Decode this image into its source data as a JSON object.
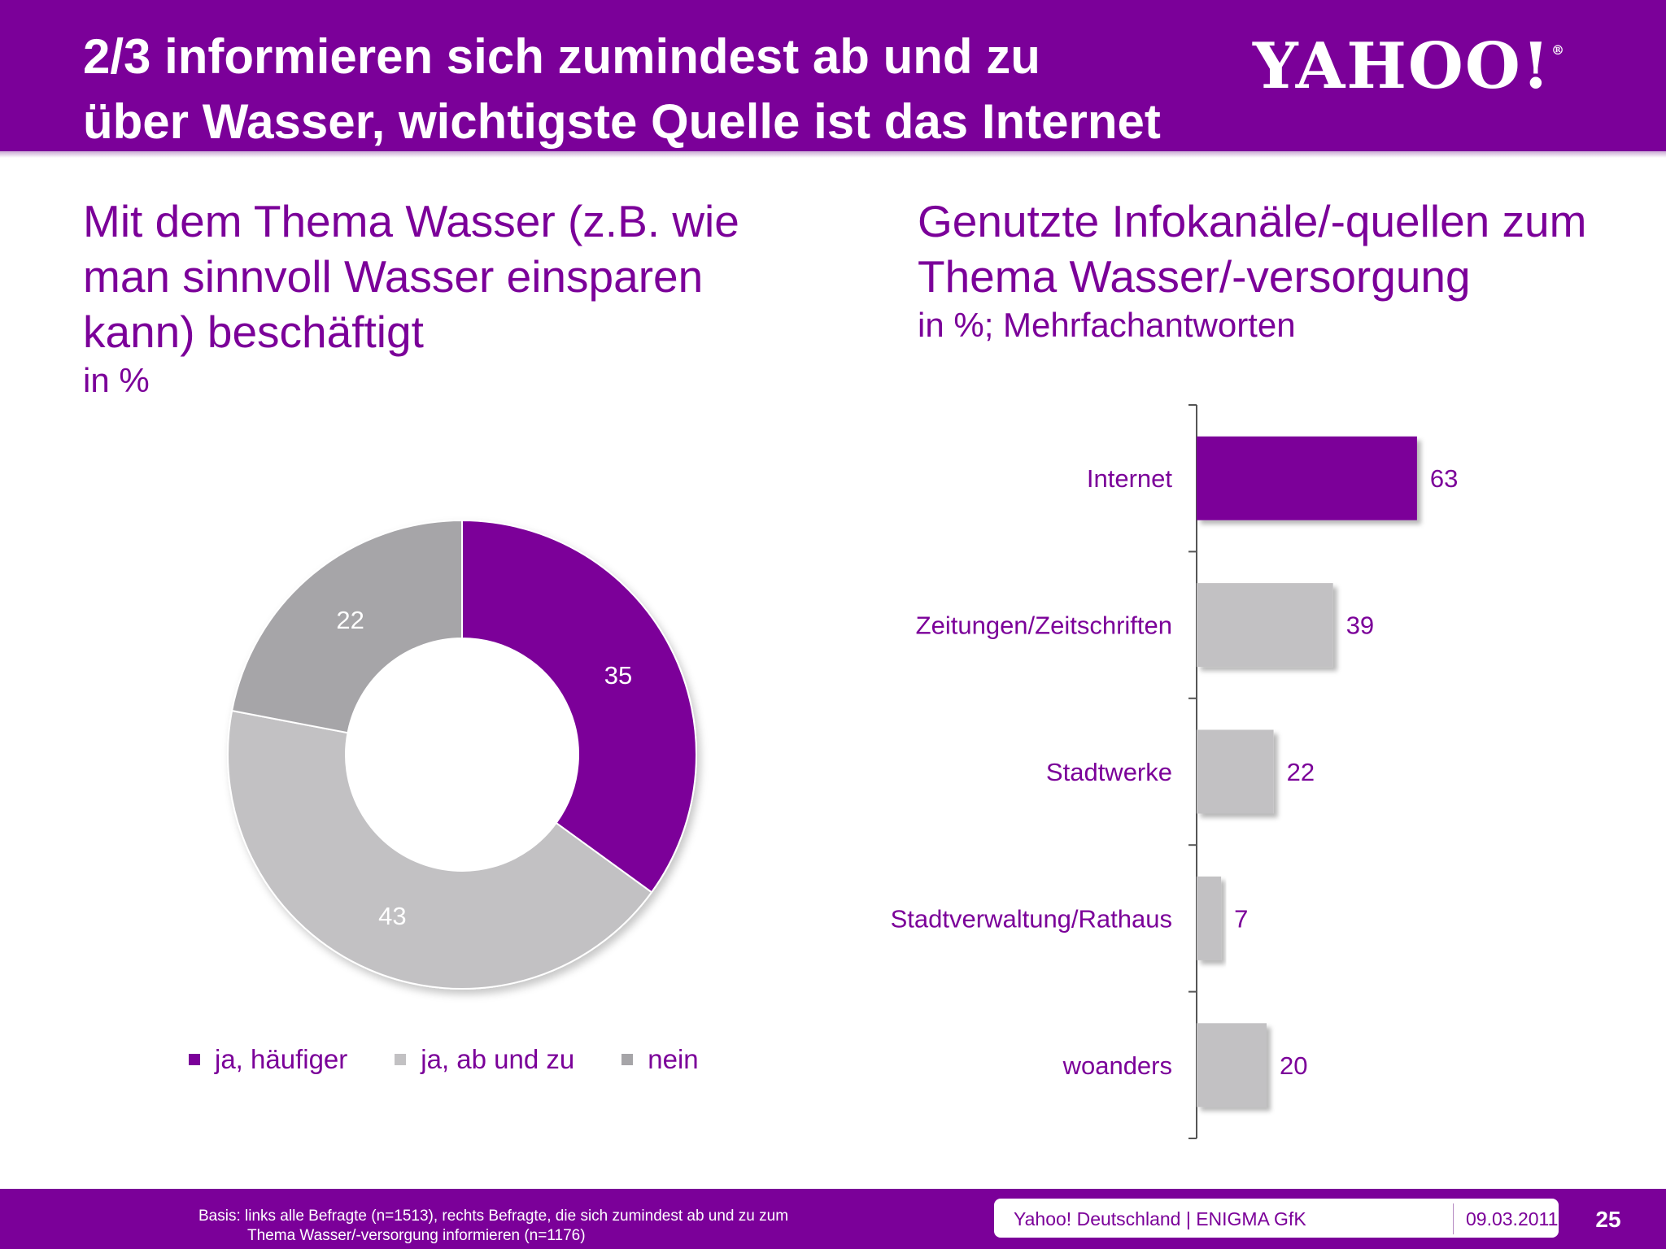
{
  "header": {
    "title_line1": "2/3 informieren sich zumindest ab und zu",
    "title_line2": "über Wasser, wichtigste Quelle ist das Internet",
    "logo_text": "YAHOO!",
    "logo_reg": "®"
  },
  "colors": {
    "brand_purple": "#7b0099",
    "light_gray": "#c2c1c3",
    "dark_gray": "#a6a5a8"
  },
  "chart_data": [
    {
      "type": "pie",
      "title_line1": "Mit dem Thema Wasser (z.B. wie",
      "title_line2": "man sinnvoll Wasser einsparen",
      "title_line3": "kann) beschäftigt",
      "unit": "in %",
      "donut": true,
      "slices": [
        {
          "label": "ja, häufiger",
          "value": 35,
          "color": "#7b0099"
        },
        {
          "label": "ja, ab und zu",
          "value": 43,
          "color": "#c2c1c3"
        },
        {
          "label": "nein",
          "value": 22,
          "color": "#a6a5a8"
        }
      ],
      "legend_placement": "bottom"
    },
    {
      "type": "bar",
      "orientation": "horizontal",
      "title_line1": "Genutzte Infokanäle/-quellen zum",
      "title_line2": "Thema Wasser/-versorgung",
      "unit": "in %; Mehrfachantworten",
      "categories": [
        "Internet",
        "Zeitungen/Zeitschriften",
        "Stadtwerke",
        "Stadtverwaltung/Rathaus",
        "woanders"
      ],
      "values": [
        63,
        39,
        22,
        7,
        20
      ],
      "colors": [
        "#7b0099",
        "#c2c1c3",
        "#c2c1c3",
        "#c2c1c3",
        "#c2c1c3"
      ],
      "xlim": [
        0,
        100
      ],
      "grid": false
    }
  ],
  "footer": {
    "basis_line1": "Basis: links alle Befragte (n=1513), rechts Befragte, die sich zumindest ab und zu zum",
    "basis_line2": "Thema Wasser/-versorgung informieren (n=1176)",
    "company": "Yahoo! Deutschland | ENIGMA GfK",
    "date": "09.03.2011",
    "page": "25"
  }
}
